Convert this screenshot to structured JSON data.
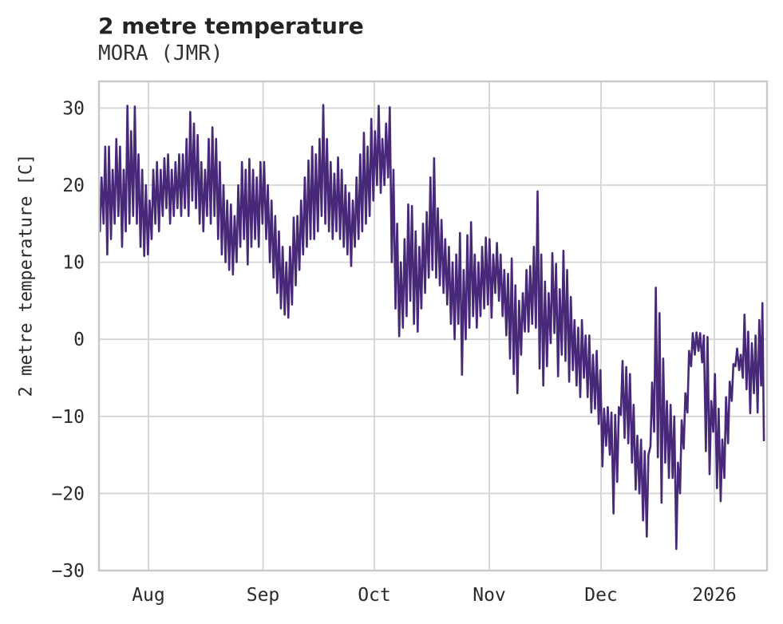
{
  "chart_data": {
    "type": "line",
    "title": "2 metre temperature",
    "subtitle": "MORA (JMR)",
    "ylabel": "2 metre temperature [C]",
    "xlabel": "",
    "legend": null,
    "grid": true,
    "colors": {
      "line": "#482878",
      "grid": "#d4d4d4",
      "spine": "#c9c9c9",
      "tick_text": "#2b2b2b"
    },
    "ylim": [
      -30,
      33.46
    ],
    "yticks": [
      30,
      20,
      10,
      0,
      -10,
      -20,
      -30
    ],
    "xlim_days": [
      0,
      180.8
    ],
    "xticks": [
      {
        "day": 13.39,
        "label": "Aug"
      },
      {
        "day": 44.39,
        "label": "Sep"
      },
      {
        "day": 74.52,
        "label": "Oct"
      },
      {
        "day": 105.63,
        "label": "Nov"
      },
      {
        "day": 135.87,
        "label": "Dec"
      },
      {
        "day": 166.54,
        "label": "2026"
      }
    ],
    "min_phase": 0.25,
    "max_phase": 0.7,
    "head": [
      [
        0.03,
        17
      ]
    ],
    "daily_minmax": [
      [
        14,
        21
      ],
      [
        15,
        25
      ],
      [
        11,
        25
      ],
      [
        13,
        22
      ],
      [
        15,
        26
      ],
      [
        16,
        25
      ],
      [
        12,
        22
      ],
      [
        14,
        30.3
      ],
      [
        15,
        27
      ],
      [
        16,
        30.2
      ],
      [
        15,
        24
      ],
      [
        12,
        22
      ],
      [
        10.8,
        20
      ],
      [
        11,
        18
      ],
      [
        13,
        22
      ],
      [
        15,
        23
      ],
      [
        14,
        22
      ],
      [
        16,
        23.5
      ],
      [
        17,
        24
      ],
      [
        15,
        22
      ],
      [
        16,
        23
      ],
      [
        17,
        24
      ],
      [
        16,
        24
      ],
      [
        17,
        26
      ],
      [
        16,
        29.5
      ],
      [
        18,
        28
      ],
      [
        17,
        26.5
      ],
      [
        15,
        23
      ],
      [
        14,
        22
      ],
      [
        16,
        26
      ],
      [
        15,
        27.5
      ],
      [
        16,
        26
      ],
      [
        13,
        23
      ],
      [
        11,
        20
      ],
      [
        10,
        18
      ],
      [
        9,
        17.5
      ],
      [
        8.4,
        16
      ],
      [
        10,
        20
      ],
      [
        12,
        23
      ],
      [
        13,
        22
      ],
      [
        9.7,
        23.4
      ],
      [
        12,
        22
      ],
      [
        13,
        21
      ],
      [
        12,
        23
      ],
      [
        15,
        23
      ],
      [
        13,
        20
      ],
      [
        10,
        18
      ],
      [
        8,
        16
      ],
      [
        6,
        14
      ],
      [
        4,
        12
      ],
      [
        3.2,
        10
      ],
      [
        2.8,
        12
      ],
      [
        4.5,
        15.8
      ],
      [
        7,
        16
      ],
      [
        9,
        18
      ],
      [
        11,
        21
      ],
      [
        12,
        23.2
      ],
      [
        13,
        25
      ],
      [
        13,
        24
      ],
      [
        14,
        26
      ],
      [
        16,
        30.4
      ],
      [
        15,
        26
      ],
      [
        14,
        23
      ],
      [
        13,
        21.5
      ],
      [
        14,
        23.6
      ],
      [
        13,
        22
      ],
      [
        12,
        20
      ],
      [
        11,
        19
      ],
      [
        9.5,
        18
      ],
      [
        12,
        21
      ],
      [
        13,
        24
      ],
      [
        14,
        26.8
      ],
      [
        15,
        25
      ],
      [
        16,
        28.6
      ],
      [
        18,
        27
      ],
      [
        20,
        30.3
      ],
      [
        19,
        26
      ],
      [
        20,
        28
      ],
      [
        21,
        30.1
      ],
      [
        10,
        22
      ],
      [
        4,
        15
      ],
      [
        0.4,
        10
      ],
      [
        1.5,
        13
      ],
      [
        3,
        17.5
      ],
      [
        5,
        17.3
      ],
      [
        2,
        14
      ],
      [
        1,
        12
      ],
      [
        4,
        15
      ],
      [
        6,
        16.5
      ],
      [
        8,
        21
      ],
      [
        9,
        23.5
      ],
      [
        8,
        17
      ],
      [
        7,
        15.5
      ],
      [
        6,
        13
      ],
      [
        4.5,
        12
      ],
      [
        2,
        10
      ],
      [
        0,
        11
      ],
      [
        2,
        13.8
      ],
      [
        -4.6,
        9
      ],
      [
        0,
        13.5
      ],
      [
        1.5,
        15.2
      ],
      [
        3,
        11
      ],
      [
        1.5,
        10
      ],
      [
        3,
        12
      ],
      [
        4,
        13.2
      ],
      [
        4.5,
        13
      ],
      [
        2.8,
        11
      ],
      [
        6,
        12.5
      ],
      [
        5,
        11
      ],
      [
        3,
        9
      ],
      [
        0.5,
        8.5
      ],
      [
        -2.5,
        10.5
      ],
      [
        -4.5,
        7
      ],
      [
        -7,
        5
      ],
      [
        -2,
        6
      ],
      [
        1,
        9
      ],
      [
        1,
        9.5
      ],
      [
        2,
        12
      ],
      [
        1.5,
        19.2
      ],
      [
        -3.8,
        11
      ],
      [
        -6,
        7.5
      ],
      [
        -3.5,
        6
      ],
      [
        -0.5,
        11.2
      ],
      [
        0.8,
        9.8
      ],
      [
        -4.8,
        6.5
      ],
      [
        -2,
        11.5
      ],
      [
        -2.8,
        9
      ],
      [
        -5.5,
        5.5
      ],
      [
        -4,
        2.5
      ],
      [
        -6,
        1.5
      ],
      [
        -7.5,
        2.5
      ],
      [
        -5,
        0.5
      ],
      [
        -7.5,
        0.5
      ],
      [
        -9.5,
        -2
      ],
      [
        -9,
        -1.5
      ],
      [
        -11,
        -4
      ],
      [
        -16.5,
        -9
      ],
      [
        -13.8,
        -8.8
      ],
      [
        -15,
        -9.5
      ],
      [
        -22.6,
        -9.8
      ],
      [
        -18.5,
        -8.8
      ],
      [
        -9.8,
        -2.8
      ],
      [
        -12.8,
        -3.6
      ],
      [
        -13.5,
        -4.5
      ],
      [
        -16,
        -8.5
      ],
      [
        -19.5,
        -12.5
      ],
      [
        -20,
        -13
      ],
      [
        -23.5,
        -14.5
      ],
      [
        -25.6,
        -15
      ],
      [
        -13.9,
        -5.6
      ],
      [
        -12,
        6.7
      ],
      [
        -15.3,
        3.4
      ],
      [
        -21.2,
        -2.5
      ],
      [
        -16,
        -8
      ],
      [
        -18,
        -8.5
      ],
      [
        -18,
        -10
      ],
      [
        -27.2,
        -16
      ],
      [
        -20,
        -10.5
      ],
      [
        -14.2,
        -7
      ],
      [
        -9.5,
        -1.5
      ],
      [
        -3.5,
        0.8
      ],
      [
        -2,
        0.9
      ],
      [
        -1.5,
        0.8
      ],
      [
        -3,
        0.5
      ],
      [
        -14.5,
        0.3
      ],
      [
        -17.5,
        -8
      ],
      [
        -12,
        -4.5
      ],
      [
        -19.3,
        -9
      ],
      [
        -21,
        -13
      ],
      [
        -18,
        -7.5
      ],
      [
        -13.5,
        -5.5
      ],
      [
        -8,
        -3.2
      ],
      [
        -3.5,
        -1.2
      ],
      [
        -4,
        -2
      ],
      [
        -5,
        3.2
      ],
      [
        -6.5,
        1
      ],
      [
        -9.6,
        -0.5
      ],
      [
        -7,
        0.5
      ],
      [
        -9.5,
        2.5
      ]
    ],
    "tail": [
      [
        179.2,
        -6
      ],
      [
        179.55,
        4.7
      ],
      [
        179.95,
        -13.1
      ]
    ]
  }
}
